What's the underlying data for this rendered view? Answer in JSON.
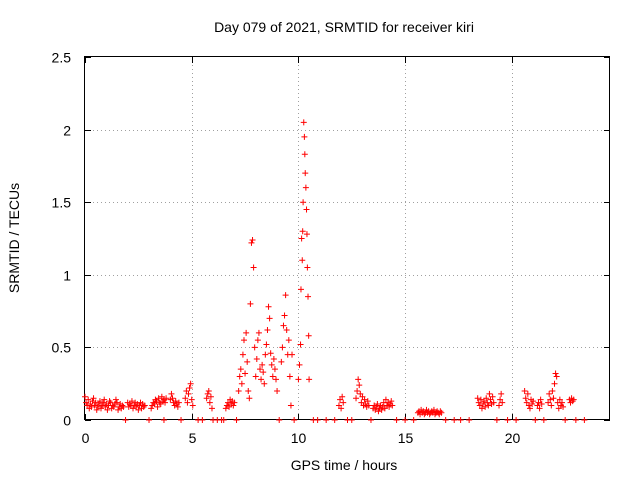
{
  "chart_data": {
    "type": "scatter",
    "title": "Day 079 of 2021, SRMTID for receiver kiri",
    "xlabel": "GPS time / hours",
    "ylabel": "SRMTID / TECUs",
    "xlim": [
      0,
      24.6
    ],
    "ylim": [
      0,
      2.5
    ],
    "grid": true,
    "marker": "+",
    "color": "#ff0000",
    "xticks": [
      0,
      5,
      10,
      15,
      20
    ],
    "xtick_labels": [
      "0",
      "5",
      "10",
      "15",
      "20"
    ],
    "yticks": [
      0,
      0.5,
      1,
      1.5,
      2,
      2.5
    ],
    "ytick_labels": [
      "0",
      "0.5",
      "1",
      "1.5",
      "2",
      "2.5"
    ],
    "series": [
      {
        "name": "SRMTID",
        "x": [
          0.0,
          0.05,
          0.1,
          0.15,
          0.2,
          0.25,
          0.3,
          0.35,
          0.4,
          0.45,
          0.5,
          0.55,
          0.6,
          0.65,
          0.7,
          0.75,
          0.8,
          0.85,
          0.9,
          0.95,
          1.0,
          1.05,
          1.1,
          1.15,
          1.2,
          1.25,
          1.3,
          1.35,
          1.4,
          1.45,
          1.5,
          1.55,
          1.6,
          1.65,
          1.7,
          1.75,
          1.8,
          2.0,
          2.05,
          2.1,
          2.15,
          2.2,
          2.25,
          2.3,
          2.35,
          2.4,
          2.45,
          2.5,
          2.55,
          2.6,
          2.65,
          2.7,
          2.75,
          2.8,
          3.1,
          3.15,
          3.2,
          3.25,
          3.3,
          3.35,
          3.4,
          3.45,
          3.5,
          3.55,
          3.6,
          3.65,
          3.7,
          3.75,
          3.8,
          4.0,
          4.05,
          4.1,
          4.15,
          4.2,
          4.25,
          4.3,
          4.35,
          4.4,
          4.7,
          4.75,
          4.8,
          4.85,
          4.9,
          4.95,
          5.0,
          5.05,
          5.7,
          5.75,
          5.8,
          5.85,
          5.9,
          5.95,
          6.6,
          6.65,
          6.7,
          6.75,
          6.8,
          6.85,
          6.9,
          6.95,
          7.0,
          7.2,
          7.25,
          7.3,
          7.35,
          7.4,
          7.45,
          7.5,
          7.55,
          7.6,
          7.65,
          7.7,
          7.75,
          7.8,
          7.85,
          7.9,
          7.95,
          8.0,
          8.05,
          8.1,
          8.15,
          8.2,
          8.25,
          8.3,
          8.35,
          8.4,
          8.45,
          8.5,
          8.55,
          8.6,
          8.65,
          8.7,
          8.75,
          8.8,
          8.85,
          8.9,
          8.95,
          9.0,
          9.2,
          9.25,
          9.3,
          9.35,
          9.4,
          9.45,
          9.5,
          9.55,
          9.6,
          9.65,
          9.7,
          10.0,
          10.05,
          10.1,
          10.12,
          10.15,
          10.18,
          10.2,
          10.22,
          10.25,
          10.28,
          10.3,
          10.32,
          10.35,
          10.38,
          10.4,
          10.42,
          10.45,
          10.48,
          10.5,
          11.9,
          11.95,
          12.0,
          12.05,
          12.1,
          12.7,
          12.75,
          12.8,
          12.85,
          12.9,
          12.95,
          13.0,
          13.05,
          13.1,
          13.15,
          13.2,
          13.25,
          13.3,
          13.5,
          13.55,
          13.6,
          13.65,
          13.7,
          13.75,
          13.8,
          13.85,
          13.9,
          13.95,
          14.0,
          14.05,
          14.1,
          14.15,
          14.2,
          14.25,
          14.3,
          14.35,
          14.4,
          15.6,
          15.65,
          15.7,
          15.75,
          15.8,
          15.85,
          15.9,
          15.95,
          16.0,
          16.05,
          16.1,
          16.15,
          16.2,
          16.25,
          16.3,
          16.35,
          16.4,
          16.45,
          16.5,
          16.55,
          16.6,
          16.65,
          16.7,
          18.4,
          18.45,
          18.5,
          18.55,
          18.6,
          18.65,
          18.7,
          18.75,
          18.8,
          18.85,
          18.9,
          18.95,
          19.0,
          19.05,
          19.1,
          19.15,
          19.4,
          19.45,
          19.5,
          19.55,
          20.6,
          20.65,
          20.7,
          20.75,
          20.8,
          20.85,
          20.9,
          20.95,
          21.0,
          21.2,
          21.25,
          21.3,
          21.35,
          21.4,
          21.7,
          21.75,
          21.8,
          21.85,
          21.9,
          21.95,
          22.0,
          22.05,
          22.1,
          22.15,
          22.2,
          22.25,
          22.3,
          22.35,
          22.4,
          22.7,
          22.75,
          22.8,
          22.85,
          22.9
        ],
        "y": [
          0.16,
          0.12,
          0.1,
          0.14,
          0.08,
          0.11,
          0.09,
          0.13,
          0.15,
          0.1,
          0.12,
          0.07,
          0.09,
          0.11,
          0.13,
          0.08,
          0.1,
          0.12,
          0.14,
          0.09,
          0.11,
          0.07,
          0.1,
          0.13,
          0.12,
          0.08,
          0.1,
          0.09,
          0.11,
          0.14,
          0.12,
          0.07,
          0.09,
          0.11,
          0.08,
          0.1,
          0.09,
          0.12,
          0.09,
          0.11,
          0.1,
          0.13,
          0.08,
          0.1,
          0.12,
          0.09,
          0.11,
          0.07,
          0.1,
          0.12,
          0.08,
          0.11,
          0.09,
          0.1,
          0.08,
          0.1,
          0.12,
          0.11,
          0.14,
          0.13,
          0.09,
          0.15,
          0.12,
          0.11,
          0.16,
          0.13,
          0.14,
          0.12,
          0.15,
          0.14,
          0.18,
          0.15,
          0.12,
          0.1,
          0.13,
          0.11,
          0.09,
          0.12,
          0.15,
          0.2,
          0.12,
          0.18,
          0.22,
          0.25,
          0.14,
          0.1,
          0.15,
          0.18,
          0.2,
          0.12,
          0.16,
          0.08,
          0.08,
          0.1,
          0.12,
          0.09,
          0.14,
          0.11,
          0.13,
          0.1,
          0.12,
          0.2,
          0.3,
          0.35,
          0.25,
          0.45,
          0.55,
          0.32,
          0.6,
          0.4,
          0.2,
          0.15,
          0.8,
          1.22,
          1.24,
          1.05,
          0.5,
          0.3,
          0.42,
          0.55,
          0.6,
          0.35,
          0.28,
          0.38,
          0.33,
          0.25,
          0.45,
          0.52,
          0.62,
          0.78,
          0.7,
          0.46,
          0.38,
          0.3,
          0.42,
          0.35,
          0.28,
          0.2,
          0.4,
          0.5,
          0.65,
          0.72,
          0.86,
          0.62,
          0.45,
          0.55,
          0.3,
          0.1,
          0.45,
          0.28,
          0.38,
          0.52,
          0.9,
          1.25,
          1.1,
          1.3,
          1.5,
          2.05,
          1.95,
          1.83,
          1.7,
          1.6,
          1.45,
          1.28,
          1.05,
          0.85,
          0.58,
          0.28,
          0.1,
          0.14,
          0.08,
          0.16,
          0.12,
          0.15,
          0.2,
          0.28,
          0.24,
          0.18,
          0.12,
          0.16,
          0.1,
          0.14,
          0.11,
          0.09,
          0.13,
          0.1,
          0.08,
          0.1,
          0.07,
          0.09,
          0.11,
          0.06,
          0.08,
          0.1,
          0.07,
          0.09,
          0.12,
          0.08,
          0.14,
          0.1,
          0.12,
          0.09,
          0.11,
          0.13,
          0.1,
          0.05,
          0.06,
          0.04,
          0.07,
          0.05,
          0.06,
          0.04,
          0.05,
          0.07,
          0.05,
          0.06,
          0.04,
          0.05,
          0.06,
          0.05,
          0.07,
          0.04,
          0.05,
          0.06,
          0.05,
          0.04,
          0.06,
          0.05,
          0.15,
          0.12,
          0.1,
          0.14,
          0.08,
          0.11,
          0.13,
          0.09,
          0.15,
          0.12,
          0.1,
          0.18,
          0.14,
          0.11,
          0.16,
          0.12,
          0.1,
          0.14,
          0.18,
          0.12,
          0.2,
          0.15,
          0.12,
          0.18,
          0.1,
          0.08,
          0.14,
          0.11,
          0.13,
          0.1,
          0.12,
          0.08,
          0.14,
          0.11,
          0.12,
          0.18,
          0.14,
          0.1,
          0.2,
          0.15,
          0.25,
          0.32,
          0.3,
          0.12,
          0.08,
          0.14,
          0.1,
          0.12,
          0.09,
          0.14,
          0.12,
          0.15,
          0.13,
          0.14
        ],
        "zeros": [
          1.9,
          3.0,
          3.7,
          4.5,
          5.3,
          5.5,
          6.0,
          6.2,
          6.4,
          6.5,
          7.1,
          9.1,
          9.8,
          10.7,
          10.9,
          11.3,
          11.7,
          12.3,
          12.5,
          13.4,
          14.6,
          15.0,
          15.4,
          16.9,
          17.3,
          17.6,
          18.0,
          19.3,
          19.8,
          20.2,
          21.1,
          21.5,
          22.5,
          23.0,
          23.4
        ]
      }
    ]
  }
}
